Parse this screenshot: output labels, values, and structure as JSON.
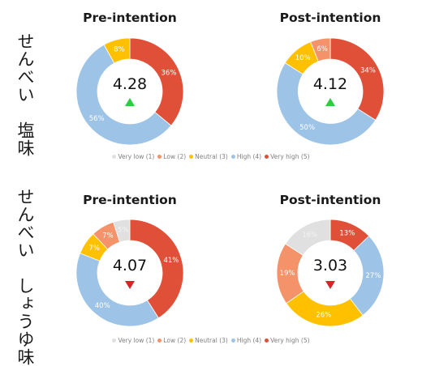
{
  "rows": [
    {
      "label": "せんべい　塩味"
    },
    {
      "label": "せんべい　しょうゆ味"
    }
  ],
  "legend": [
    {
      "label": "Very low (1)",
      "color": "#E0E0E0"
    },
    {
      "label": "Low (2)",
      "color": "#F4926A"
    },
    {
      "label": "Neutral (3)",
      "color": "#FFC000"
    },
    {
      "label": "High (4)",
      "color": "#9DC3E6"
    },
    {
      "label": "Very high (5)",
      "color": "#E05038"
    }
  ],
  "chart_data": [
    {
      "type": "pie",
      "title": "Pre-intention",
      "center_value": "4.28",
      "trend": "up",
      "categories": [
        "Very high (5)",
        "High (4)",
        "Neutral (3)"
      ],
      "values": [
        36,
        56,
        8
      ],
      "labels": [
        "36%",
        "56%",
        "8%"
      ],
      "colors": [
        "#E05038",
        "#9DC3E6",
        "#FFC000"
      ]
    },
    {
      "type": "pie",
      "title": "Post-intention",
      "center_value": "4.12",
      "trend": "up",
      "categories": [
        "Very high (5)",
        "High (4)",
        "Neutral (3)",
        "Low (2)"
      ],
      "values": [
        34,
        50,
        10,
        6
      ],
      "labels": [
        "34%",
        "50%",
        "10%",
        "6%"
      ],
      "colors": [
        "#E05038",
        "#9DC3E6",
        "#FFC000",
        "#F4926A"
      ]
    },
    {
      "type": "pie",
      "title": "Pre-intention",
      "center_value": "4.07",
      "trend": "down",
      "categories": [
        "Very high (5)",
        "High (4)",
        "Neutral (3)",
        "Low (2)",
        "Very low (1)"
      ],
      "values": [
        41,
        40,
        7,
        7,
        5
      ],
      "labels": [
        "41%",
        "40%",
        "7%",
        "7%",
        "5%"
      ],
      "colors": [
        "#E05038",
        "#9DC3E6",
        "#FFC000",
        "#F4926A",
        "#E0E0E0"
      ]
    },
    {
      "type": "pie",
      "title": "Post-intention",
      "center_value": "3.03",
      "trend": "down",
      "categories": [
        "Very high (5)",
        "High (4)",
        "Neutral (3)",
        "Low (2)",
        "Very low (1)"
      ],
      "values": [
        13,
        27,
        26,
        19,
        16
      ],
      "labels": [
        "13%",
        "27%",
        "26%",
        "19%",
        "16%"
      ],
      "colors": [
        "#E05038",
        "#9DC3E6",
        "#FFC000",
        "#F4926A",
        "#E0E0E0"
      ]
    }
  ]
}
